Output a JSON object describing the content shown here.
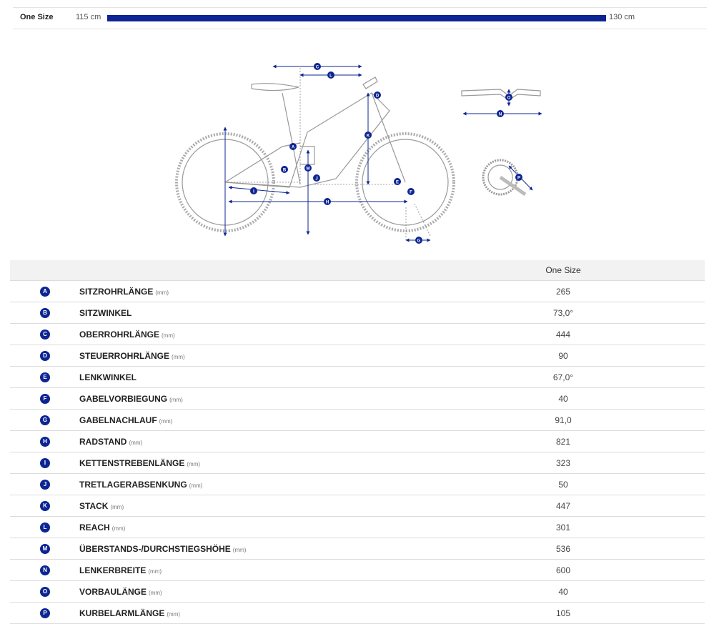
{
  "size_range": {
    "label": "One Size",
    "min_label": "115 cm",
    "max_label": "130 cm",
    "fill_fraction": 1.0
  },
  "colors": {
    "accent": "#0d2593",
    "line": "#888888",
    "header_bg": "#f2f2f2"
  },
  "diagram": {
    "icons": [
      "bike-geometry-icon",
      "handlebar-icon",
      "crankset-icon"
    ],
    "markers": [
      "A",
      "B",
      "C",
      "D",
      "E",
      "F",
      "G",
      "H",
      "I",
      "J",
      "K",
      "L",
      "M",
      "N",
      "O",
      "P"
    ]
  },
  "table": {
    "header": {
      "size_column": "One Size"
    },
    "rows": [
      {
        "letter": "A",
        "name": "SITZROHRLÄNGE",
        "unit": "(mm)",
        "value": "265"
      },
      {
        "letter": "B",
        "name": "SITZWINKEL",
        "unit": "",
        "value": "73,0°"
      },
      {
        "letter": "C",
        "name": "OBERROHRLÄNGE",
        "unit": "(mm)",
        "value": "444"
      },
      {
        "letter": "D",
        "name": "STEUERROHRLÄNGE",
        "unit": "(mm)",
        "value": "90"
      },
      {
        "letter": "E",
        "name": "LENKWINKEL",
        "unit": "",
        "value": "67,0°"
      },
      {
        "letter": "F",
        "name": "GABELVORBIEGUNG",
        "unit": "(mm)",
        "value": "40"
      },
      {
        "letter": "G",
        "name": "GABELNACHLAUF",
        "unit": "(mm)",
        "value": "91,0"
      },
      {
        "letter": "H",
        "name": "RADSTAND",
        "unit": "(mm)",
        "value": "821"
      },
      {
        "letter": "I",
        "name": "KETTENSTREBENLÄNGE",
        "unit": "(mm)",
        "value": "323"
      },
      {
        "letter": "J",
        "name": "TRETLAGERABSENKUNG",
        "unit": "(mm)",
        "value": "50"
      },
      {
        "letter": "K",
        "name": "STACK",
        "unit": "(mm)",
        "value": "447"
      },
      {
        "letter": "L",
        "name": "REACH",
        "unit": "(mm)",
        "value": "301"
      },
      {
        "letter": "M",
        "name": "ÜBERSTANDS-/DURCHSTIEGSHÖHE",
        "unit": "(mm)",
        "value": "536"
      },
      {
        "letter": "N",
        "name": "LENKERBREITE",
        "unit": "(mm)",
        "value": "600"
      },
      {
        "letter": "O",
        "name": "VORBAULÄNGE",
        "unit": "(mm)",
        "value": "40"
      },
      {
        "letter": "P",
        "name": "KURBELARMLÄNGE",
        "unit": "(mm)",
        "value": "105"
      }
    ]
  }
}
